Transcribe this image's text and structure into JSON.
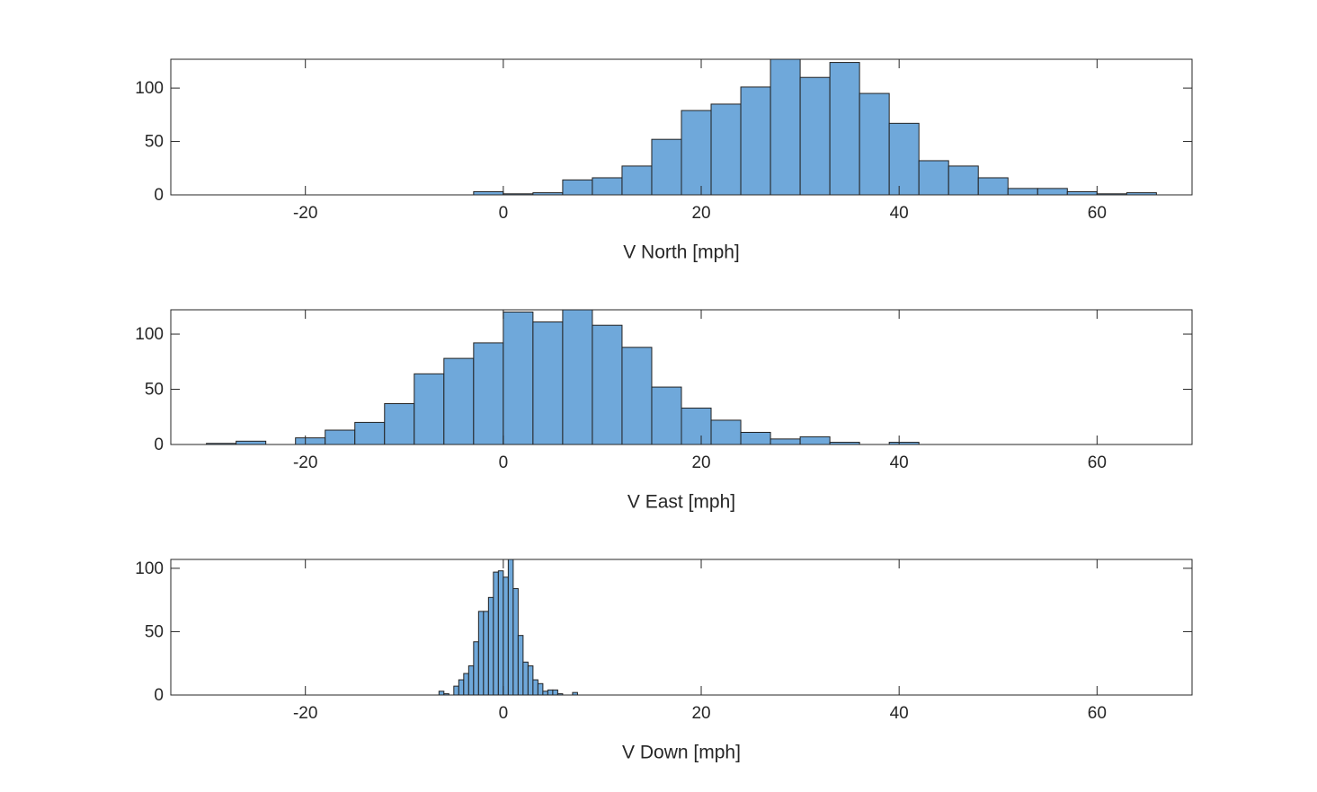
{
  "chart_data": [
    {
      "type": "histogram",
      "xlabel": "V North [mph]",
      "color": "#6fa8da",
      "bins": [
        -3,
        0,
        3,
        6,
        9,
        12,
        15,
        18,
        21,
        24,
        27,
        30,
        33,
        36,
        39,
        42,
        45,
        48,
        51,
        54,
        57,
        60,
        63,
        66
      ],
      "values": [
        3,
        1,
        2,
        14,
        16,
        27,
        52,
        79,
        85,
        101,
        127,
        110,
        124,
        95,
        67,
        32,
        27,
        16,
        6,
        6,
        3,
        1,
        2
      ],
      "xlim": [
        -33.6,
        69.6
      ],
      "ylim": [
        0,
        127
      ],
      "xticks": [
        -20,
        0,
        20,
        40,
        60
      ],
      "yticks": [
        0,
        50,
        100
      ]
    },
    {
      "type": "histogram",
      "xlabel": "V East [mph]",
      "color": "#6fa8da",
      "bins": [
        -30,
        -27,
        -24,
        -21,
        -18,
        -15,
        -12,
        -9,
        -6,
        -3,
        0,
        3,
        6,
        9,
        12,
        15,
        18,
        21,
        24,
        27,
        30,
        33,
        36,
        39,
        42
      ],
      "values": [
        1,
        3,
        0,
        6,
        13,
        20,
        37,
        64,
        78,
        92,
        120,
        111,
        122,
        108,
        88,
        52,
        33,
        22,
        11,
        5,
        7,
        2,
        0,
        2
      ],
      "xlim": [
        -33.6,
        69.6
      ],
      "ylim": [
        0,
        122
      ],
      "xticks": [
        -20,
        0,
        20,
        40,
        60
      ],
      "yticks": [
        0,
        50,
        100
      ]
    },
    {
      "type": "histogram",
      "xlabel": "V Down [mph]",
      "color": "#6fa8da",
      "bins": [
        -6.5,
        -6,
        -5.5,
        -5,
        -4.5,
        -4,
        -3.5,
        -3,
        -2.5,
        -2,
        -1.5,
        -1,
        -0.5,
        0,
        0.5,
        1,
        1.5,
        2,
        2.5,
        3,
        3.5,
        4,
        4.5,
        5,
        5.5,
        6,
        6.5,
        7,
        7.5
      ],
      "values": [
        3,
        1,
        0,
        7,
        12,
        17,
        23,
        42,
        66,
        66,
        77,
        97,
        98,
        93,
        107,
        84,
        47,
        26,
        23,
        12,
        9,
        3,
        4,
        4,
        1,
        0,
        0,
        2
      ],
      "xlim": [
        -33.6,
        69.6
      ],
      "ylim": [
        0,
        107
      ],
      "xticks": [
        -20,
        0,
        20,
        40,
        60
      ],
      "yticks": [
        0,
        50,
        100
      ]
    }
  ]
}
